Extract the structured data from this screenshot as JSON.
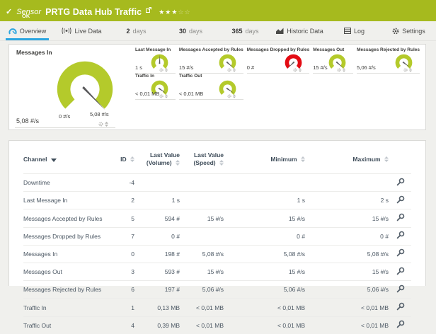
{
  "header": {
    "type_label": "Sensor",
    "title": "PRTG Data Hub Traffic",
    "status": "OK",
    "stars_filled": "★★★",
    "stars_empty": "☆☆"
  },
  "tabs": [
    {
      "label": "Overview",
      "active": true
    },
    {
      "label": "Live Data"
    },
    {
      "num": "2",
      "unit": "days"
    },
    {
      "num": "30",
      "unit": "days"
    },
    {
      "num": "365",
      "unit": "days"
    },
    {
      "label": "Historic Data"
    },
    {
      "label": "Log"
    },
    {
      "label": "Settings"
    }
  ],
  "gauges": {
    "primary": {
      "title": "Messages In",
      "value": "5,08 #/s",
      "scale_min": "0 #/s",
      "scale_max": "5,08 #/s",
      "needle_deg": 136,
      "color": "#b4ca2b"
    },
    "small": [
      {
        "title": "Last Message In",
        "value": "1 s",
        "needle_deg": 2,
        "color": "#b4ca2b"
      },
      {
        "title": "Messages Accepted by Rules",
        "value": "15 #/s",
        "needle_deg": 132,
        "color": "#b4ca2b"
      },
      {
        "title": "Messages Dropped by Rules",
        "value": "0 #",
        "needle_deg": -134,
        "color": "#e30b13"
      },
      {
        "title": "Messages Out",
        "value": "15 #/s",
        "needle_deg": 132,
        "color": "#b4ca2b"
      },
      {
        "title": "Messages Rejected by Rules",
        "value": "5,06 #/s",
        "needle_deg": 128,
        "color": "#b4ca2b"
      },
      {
        "title": "Traffic In",
        "value": "< 0,01 MB",
        "needle_deg": 124,
        "color": "#b4ca2b"
      },
      {
        "title": "Traffic Out",
        "value": "< 0,01 MB",
        "needle_deg": 124,
        "color": "#b4ca2b"
      }
    ]
  },
  "table": {
    "columns": {
      "channel": "Channel",
      "id": "ID",
      "volume_l1": "Last Value",
      "volume_l2": "(Volume)",
      "speed_l1": "Last Value",
      "speed_l2": "(Speed)",
      "min": "Minimum",
      "max": "Maximum"
    },
    "rows": [
      {
        "channel": "Downtime",
        "id": "-4",
        "volume": "",
        "speed": "",
        "min": "",
        "max": ""
      },
      {
        "channel": "Last Message In",
        "id": "2",
        "volume": "1 s",
        "speed": "",
        "min": "1 s",
        "max": "2 s"
      },
      {
        "channel": "Messages Accepted by Rules",
        "id": "5",
        "volume": "594 #",
        "speed": "15 #/s",
        "min": "15 #/s",
        "max": "15 #/s"
      },
      {
        "channel": "Messages Dropped by Rules",
        "id": "7",
        "volume": "0 #",
        "speed": "",
        "min": "0 #",
        "max": "0 #"
      },
      {
        "channel": "Messages In",
        "id": "0",
        "volume": "198 #",
        "speed": "5,08 #/s",
        "min": "5,08 #/s",
        "max": "5,08 #/s"
      },
      {
        "channel": "Messages Out",
        "id": "3",
        "volume": "593 #",
        "speed": "15 #/s",
        "min": "15 #/s",
        "max": "15 #/s"
      },
      {
        "channel": "Messages Rejected by Rules",
        "id": "6",
        "volume": "197 #",
        "speed": "5,06 #/s",
        "min": "5,06 #/s",
        "max": "5,06 #/s"
      },
      {
        "channel": "Traffic In",
        "id": "1",
        "volume": "0,13 MB",
        "speed": "< 0,01 MB",
        "min": "< 0,01 MB",
        "max": "< 0,01 MB"
      },
      {
        "channel": "Traffic Out",
        "id": "4",
        "volume": "0,39 MB",
        "speed": "< 0,01 MB",
        "min": "< 0,01 MB",
        "max": "< 0,01 MB"
      }
    ]
  },
  "icons": {
    "header": [
      "check-icon",
      "external-link-icon",
      "star-rating"
    ],
    "tabs": [
      "gauge-icon",
      "live-signal-icon",
      "historic-chart-icon",
      "log-icon",
      "gear-icon"
    ],
    "gauges": [
      "gear-icon",
      "sort-toggle-icon"
    ],
    "table": [
      "sort-both-icon",
      "sort-desc-icon",
      "channel-settings-wrench-icon"
    ]
  },
  "colors": {
    "header_green": "#a6ba1e",
    "gauge_green": "#b4ca2b",
    "gauge_red": "#e30b13",
    "accent_blue": "#2da6e0"
  }
}
